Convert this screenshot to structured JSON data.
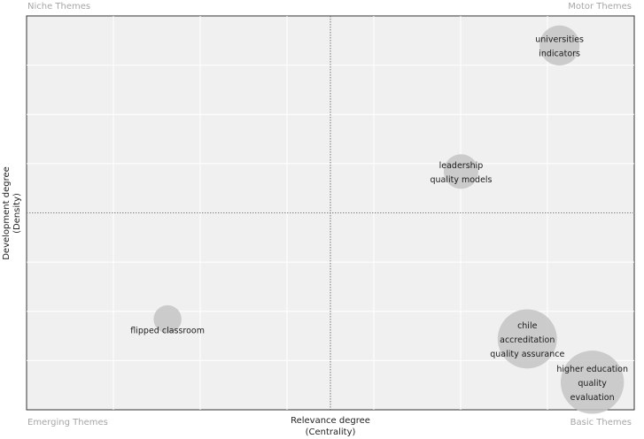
{
  "chart_data": {
    "type": "scatter",
    "title": "",
    "xlabel": [
      "Relevance degree",
      "(Centrality)"
    ],
    "ylabel": [
      "Development degree",
      "(Density)"
    ],
    "quadrants": {
      "top_left": "Niche Themes",
      "top_right": "Motor Themes",
      "bottom_left": "Emerging Themes",
      "bottom_right": "Basic Themes"
    },
    "grid": true,
    "xlim": [
      0,
      1
    ],
    "ylim": [
      0,
      1
    ],
    "reference_lines": {
      "x": 0.5,
      "y": 0.5
    },
    "points": [
      {
        "labels": [
          "universities",
          "indicators"
        ],
        "x": 0.877,
        "y": 0.925,
        "size": 0.2
      },
      {
        "labels": [
          "leadership",
          "quality models"
        ],
        "x": 0.715,
        "y": 0.605,
        "size": 0.14
      },
      {
        "labels": [
          "flipped classroom"
        ],
        "x": 0.232,
        "y": 0.23,
        "size": 0.08
      },
      {
        "labels": [
          "chile",
          "accreditation",
          "quality assurance"
        ],
        "x": 0.824,
        "y": 0.18,
        "size": 0.5
      },
      {
        "labels": [
          "higher education",
          "quality",
          "evaluation"
        ],
        "x": 0.931,
        "y": 0.07,
        "size": 0.58
      }
    ],
    "colors": {
      "panel": "#f0f0f0",
      "grid": "#ffffff",
      "bubble": "#c4c4c4",
      "reference_line": "#555555"
    }
  }
}
